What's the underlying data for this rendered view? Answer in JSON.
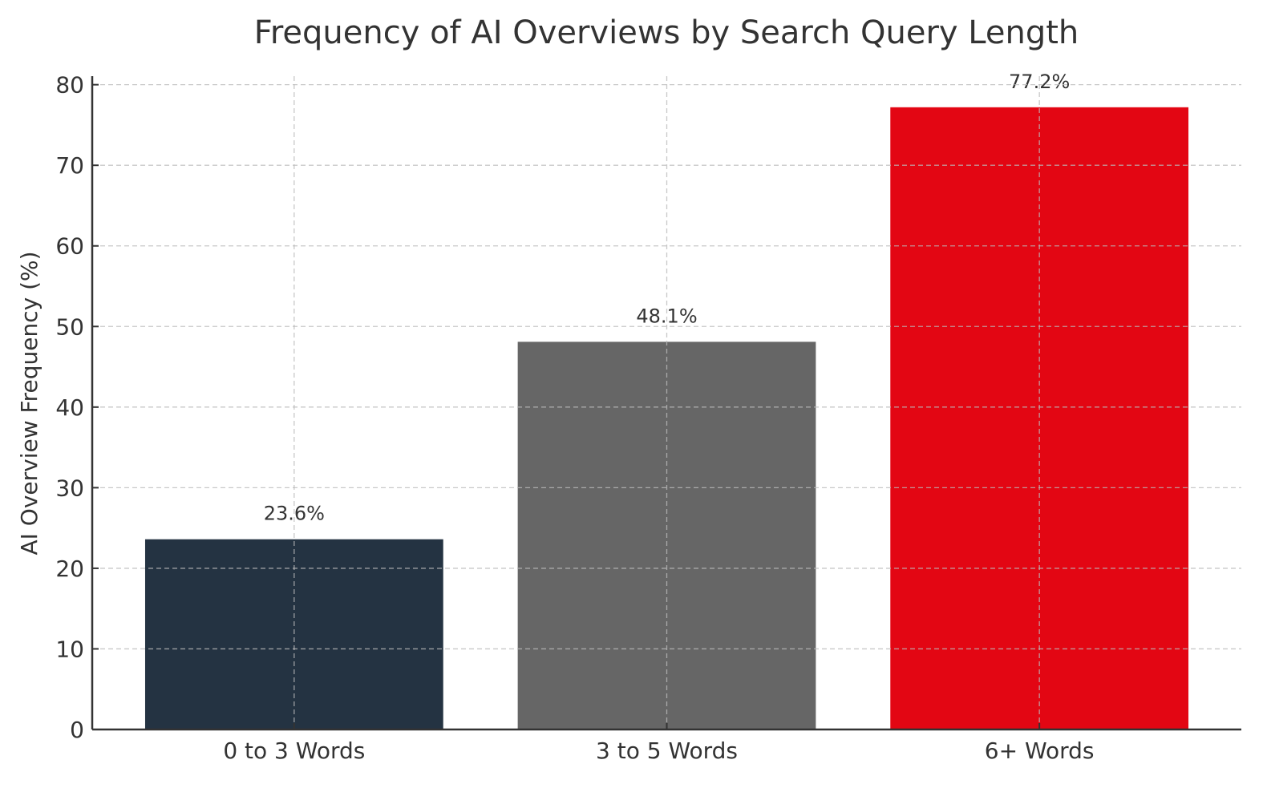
{
  "chart_data": {
    "type": "bar",
    "title": "Frequency of AI Overviews by Search Query Length",
    "xlabel": "",
    "ylabel": "AI Overview Frequency (%)",
    "categories": [
      "0 to 3 Words",
      "3 to 5 Words",
      "6+ Words"
    ],
    "values": [
      23.6,
      48.1,
      77.2
    ],
    "data_labels": [
      "23.6%",
      "48.1%",
      "77.2%"
    ],
    "colors": [
      "#243342",
      "#666666",
      "#e30613"
    ],
    "ylim": [
      0,
      81.06
    ],
    "yticks": [
      0,
      10,
      20,
      30,
      40,
      50,
      60,
      70,
      80
    ],
    "grid": true,
    "legend": "none"
  }
}
